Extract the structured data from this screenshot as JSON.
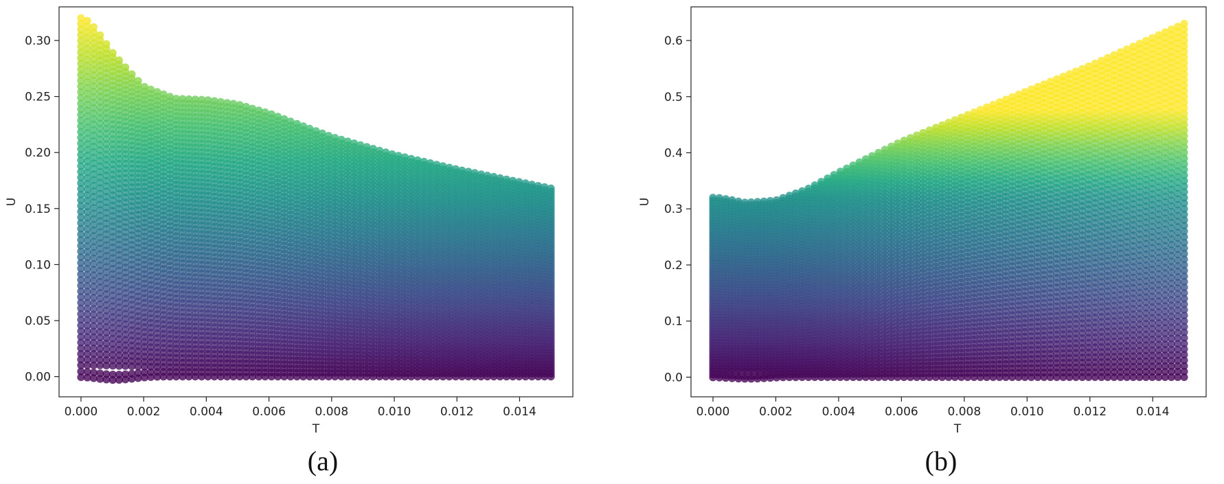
{
  "chart_data": [
    {
      "type": "scatter",
      "panel_label": "(a)",
      "xlabel": "T",
      "ylabel": "U",
      "xlim": [
        -0.0007,
        0.0157
      ],
      "ylim": [
        -0.018,
        0.33
      ],
      "x_ticks": [
        "0.000",
        "0.002",
        "0.004",
        "0.006",
        "0.008",
        "0.010",
        "0.012",
        "0.014"
      ],
      "y_ticks": [
        "0.00",
        "0.05",
        "0.10",
        "0.15",
        "0.20",
        "0.25",
        "0.30"
      ],
      "x_range": [
        0,
        0.015
      ],
      "colormap": "viridis",
      "curve_count": 64,
      "points_per_curve": 75,
      "initial_values": [
        0,
        0.32
      ],
      "end_values_at_t_max": [
        0,
        0.168
      ],
      "upper_envelope": {
        "t": [
          0,
          0.001,
          0.002,
          0.003,
          0.004,
          0.005,
          0.006,
          0.008,
          0.01,
          0.012,
          0.015
        ],
        "u": [
          0.32,
          0.285,
          0.258,
          0.248,
          0.247,
          0.243,
          0.235,
          0.214,
          0.198,
          0.185,
          0.168
        ]
      },
      "grid": false,
      "legend": "none"
    },
    {
      "type": "scatter",
      "panel_label": "(b)",
      "xlabel": "T",
      "ylabel": "U",
      "xlim": [
        -0.0007,
        0.0157
      ],
      "ylim": [
        -0.035,
        0.66
      ],
      "x_ticks": [
        "0.000",
        "0.002",
        "0.004",
        "0.006",
        "0.008",
        "0.010",
        "0.012",
        "0.014"
      ],
      "y_ticks": [
        "0.0",
        "0.1",
        "0.2",
        "0.3",
        "0.4",
        "0.5",
        "0.6"
      ],
      "x_range": [
        0,
        0.015
      ],
      "colormap": "viridis",
      "curve_count": 64,
      "points_per_curve": 75,
      "initial_values": [
        0,
        0.32
      ],
      "end_values_at_t_max": [
        0,
        0.63
      ],
      "upper_envelope": {
        "t": [
          0,
          0.001,
          0.002,
          0.003,
          0.004,
          0.006,
          0.008,
          0.01,
          0.012,
          0.015
        ],
        "u": [
          0.32,
          0.31,
          0.315,
          0.335,
          0.365,
          0.42,
          0.465,
          0.51,
          0.555,
          0.63
        ]
      },
      "grid": false,
      "legend": "none"
    }
  ]
}
